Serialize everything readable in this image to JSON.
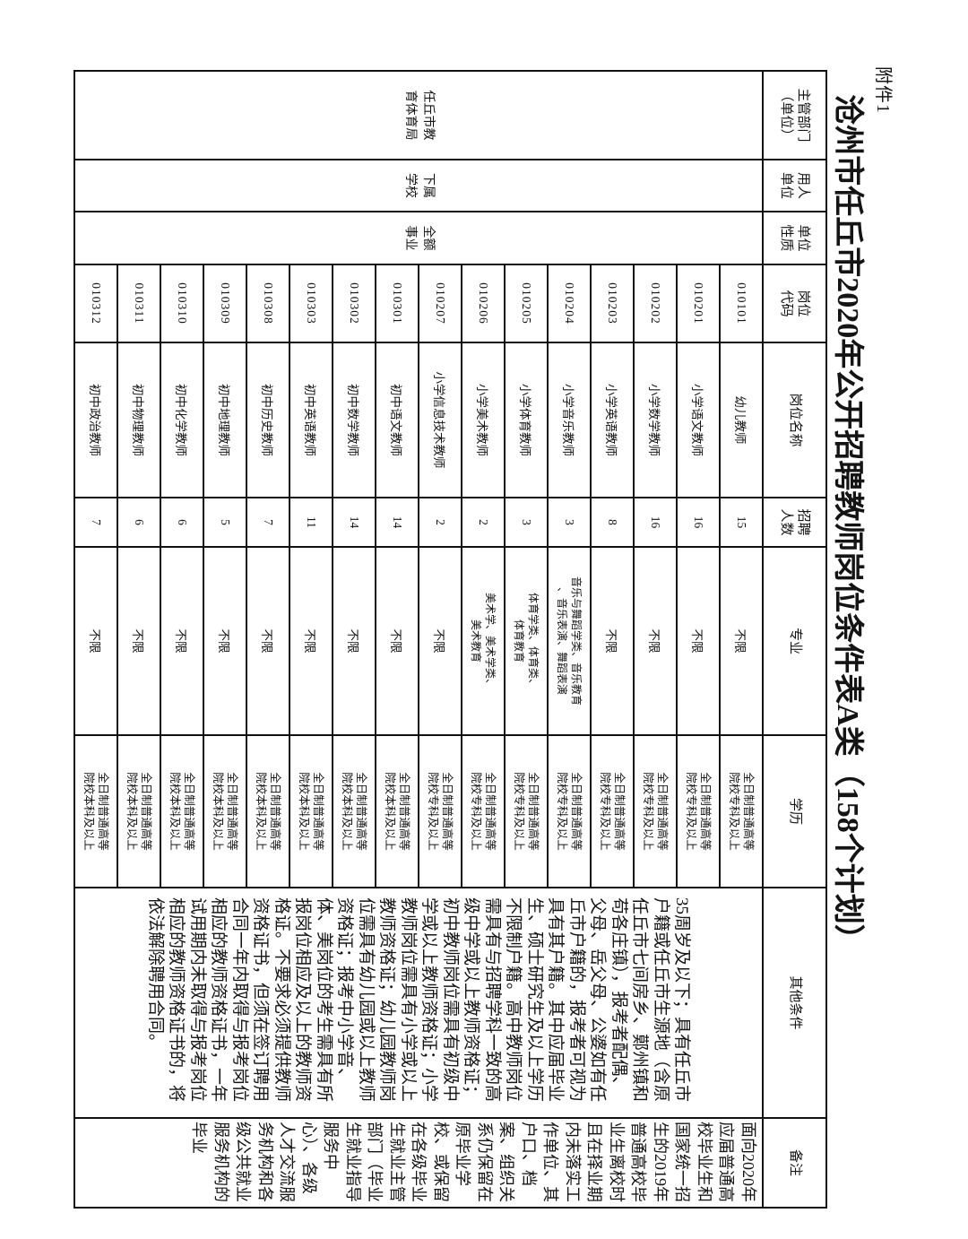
{
  "attachment_label": "附件1",
  "title": "沧州市任丘市2020年公开招聘教师岗位条件表A类（158个计划）",
  "columns": [
    "主管部门\n（单位）",
    "用人\n单位",
    "单位\n性质",
    "岗位\n代码",
    "岗位名称",
    "招聘\n人数",
    "专业",
    "学历",
    "其他条件",
    "备注"
  ],
  "merged": {
    "department": "任丘市教育体育局",
    "employer": "下属学校",
    "unit_type": "全额事业",
    "other_conditions": "35周岁及以下；具有任丘市户籍或任丘市生源地（含原任丘市七间房乡、鄚州镇和苟各庄镇），报考者配偶、父母、岳父母、公婆如有任丘市户籍的，报考者可视为具有其户籍。其中应届毕业生、硕士研究生及以上学历不限制户籍。高中教师岗位需具有与招聘学科一致的高级中学或以上教师资格证；初中教师岗位需具有初级中学或以上教师资格证；小学教师岗位需具有小学或以上教师资格证；幼儿园教师岗位需具有幼儿园或以上教师资格证；报考中小学音、体、美岗位的考生需具有所报岗位相应及以上的教师资格证。不要求必须提供教师资格证书，但须在签订聘用合同一年内取得与报考岗位相应的教师资格证书，一年试用期内未取得与报考岗位相应的教师资格证书的，将依法解除聘用合同。",
    "remark": "面向2020年应届普通高校毕业生和国家统一招生的2019年普通高校毕业生离校时且在择业期内未落实工作单位、其户口、档案、组织关系仍保留在原毕业学校、或保留在各级毕业生就业主管部门（毕业生就业指导服务中心）、各级人才交流服务机构和各级公共就业服务机构的毕业"
  },
  "rows": [
    {
      "code": "010101",
      "name": "幼儿教师",
      "count": "15",
      "major": "不限",
      "degree": "全日制普通高等\n院校专科及以上"
    },
    {
      "code": "010201",
      "name": "小学语文教师",
      "count": "16",
      "major": "不限",
      "degree": "全日制普通高等\n院校专科及以上"
    },
    {
      "code": "010202",
      "name": "小学数学教师",
      "count": "16",
      "major": "不限",
      "degree": "全日制普通高等\n院校专科及以上"
    },
    {
      "code": "010203",
      "name": "小学英语教师",
      "count": "8",
      "major": "不限",
      "degree": "全日制普通高等\n院校专科及以上"
    },
    {
      "code": "010204",
      "name": "小学音乐教师",
      "count": "3",
      "major": "音乐与舞蹈学类、音乐教育\n、音乐表演、舞蹈表演",
      "degree": "全日制普通高等\n院校专科及以上"
    },
    {
      "code": "010205",
      "name": "小学体育教师",
      "count": "3",
      "major": "体育学类、体育类、\n体育教育",
      "degree": "全日制普通高等\n院校专科及以上"
    },
    {
      "code": "010206",
      "name": "小学美术教师",
      "count": "2",
      "major": "美术学、美术学类、\n美术教育",
      "degree": "全日制普通高等\n院校专科及以上"
    },
    {
      "code": "010207",
      "name": "小学信息技术教师",
      "count": "2",
      "major": "不限",
      "degree": "全日制普通高等\n院校专科及以上"
    },
    {
      "code": "010301",
      "name": "初中语文教师",
      "count": "14",
      "major": "不限",
      "degree": "全日制普通高等\n院校本科及以上"
    },
    {
      "code": "010302",
      "name": "初中数学教师",
      "count": "14",
      "major": "不限",
      "degree": "全日制普通高等\n院校本科及以上"
    },
    {
      "code": "010303",
      "name": "初中英语教师",
      "count": "11",
      "major": "不限",
      "degree": "全日制普通高等\n院校本科及以上"
    },
    {
      "code": "010308",
      "name": "初中历史教师",
      "count": "7",
      "major": "不限",
      "degree": "全日制普通高等\n院校本科及以上"
    },
    {
      "code": "010309",
      "name": "初中地理教师",
      "count": "5",
      "major": "不限",
      "degree": "全日制普通高等\n院校本科及以上"
    },
    {
      "code": "010310",
      "name": "初中化学教师",
      "count": "6",
      "major": "不限",
      "degree": "全日制普通高等\n院校本科及以上"
    },
    {
      "code": "010311",
      "name": "初中物理教师",
      "count": "6",
      "major": "不限",
      "degree": "全日制普通高等\n院校本科及以上"
    },
    {
      "code": "010312",
      "name": "初中政治教师",
      "count": "7",
      "major": "不限",
      "degree": "全日制普通高等\n院校本科及以上"
    }
  ]
}
